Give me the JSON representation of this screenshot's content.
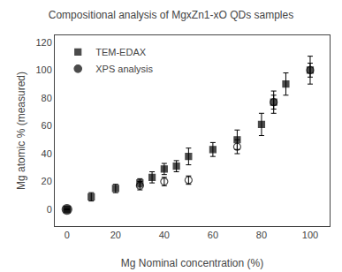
{
  "chart_data": {
    "type": "scatter",
    "title": "Compositional analysis of MgxZn1-xO QDs samples",
    "xlabel": "Mg Nominal concentration (%)",
    "ylabel": "Mg atomic % (measured)",
    "xlim": [
      -5,
      108
    ],
    "ylim": [
      -12,
      125
    ],
    "xticks": [
      0,
      20,
      40,
      60,
      80,
      100
    ],
    "yticks": [
      0,
      20,
      40,
      60,
      80,
      100,
      120
    ],
    "grid": false,
    "legend": "upper left",
    "series": [
      {
        "name": "TEM-EDAX",
        "color": "black",
        "marker": "square",
        "x": [
          0,
          10,
          20,
          30,
          35,
          40,
          45,
          50,
          60,
          70,
          80,
          85,
          90,
          100
        ],
        "values": [
          0,
          9,
          15,
          19,
          23,
          29,
          31,
          38,
          43,
          50,
          61,
          77,
          90,
          100
        ],
        "yerr": [
          0,
          3,
          3,
          3,
          4,
          4,
          4,
          6,
          5,
          7,
          8,
          8,
          8,
          10
        ]
      },
      {
        "name": "XPS analysis",
        "color": "black",
        "marker": "circle",
        "x": [
          0,
          30,
          40,
          50,
          70,
          85,
          100
        ],
        "values": [
          0,
          17,
          20,
          21,
          45,
          77,
          100
        ],
        "yerr": [
          0,
          3,
          3,
          3,
          5,
          5,
          5
        ]
      }
    ]
  }
}
